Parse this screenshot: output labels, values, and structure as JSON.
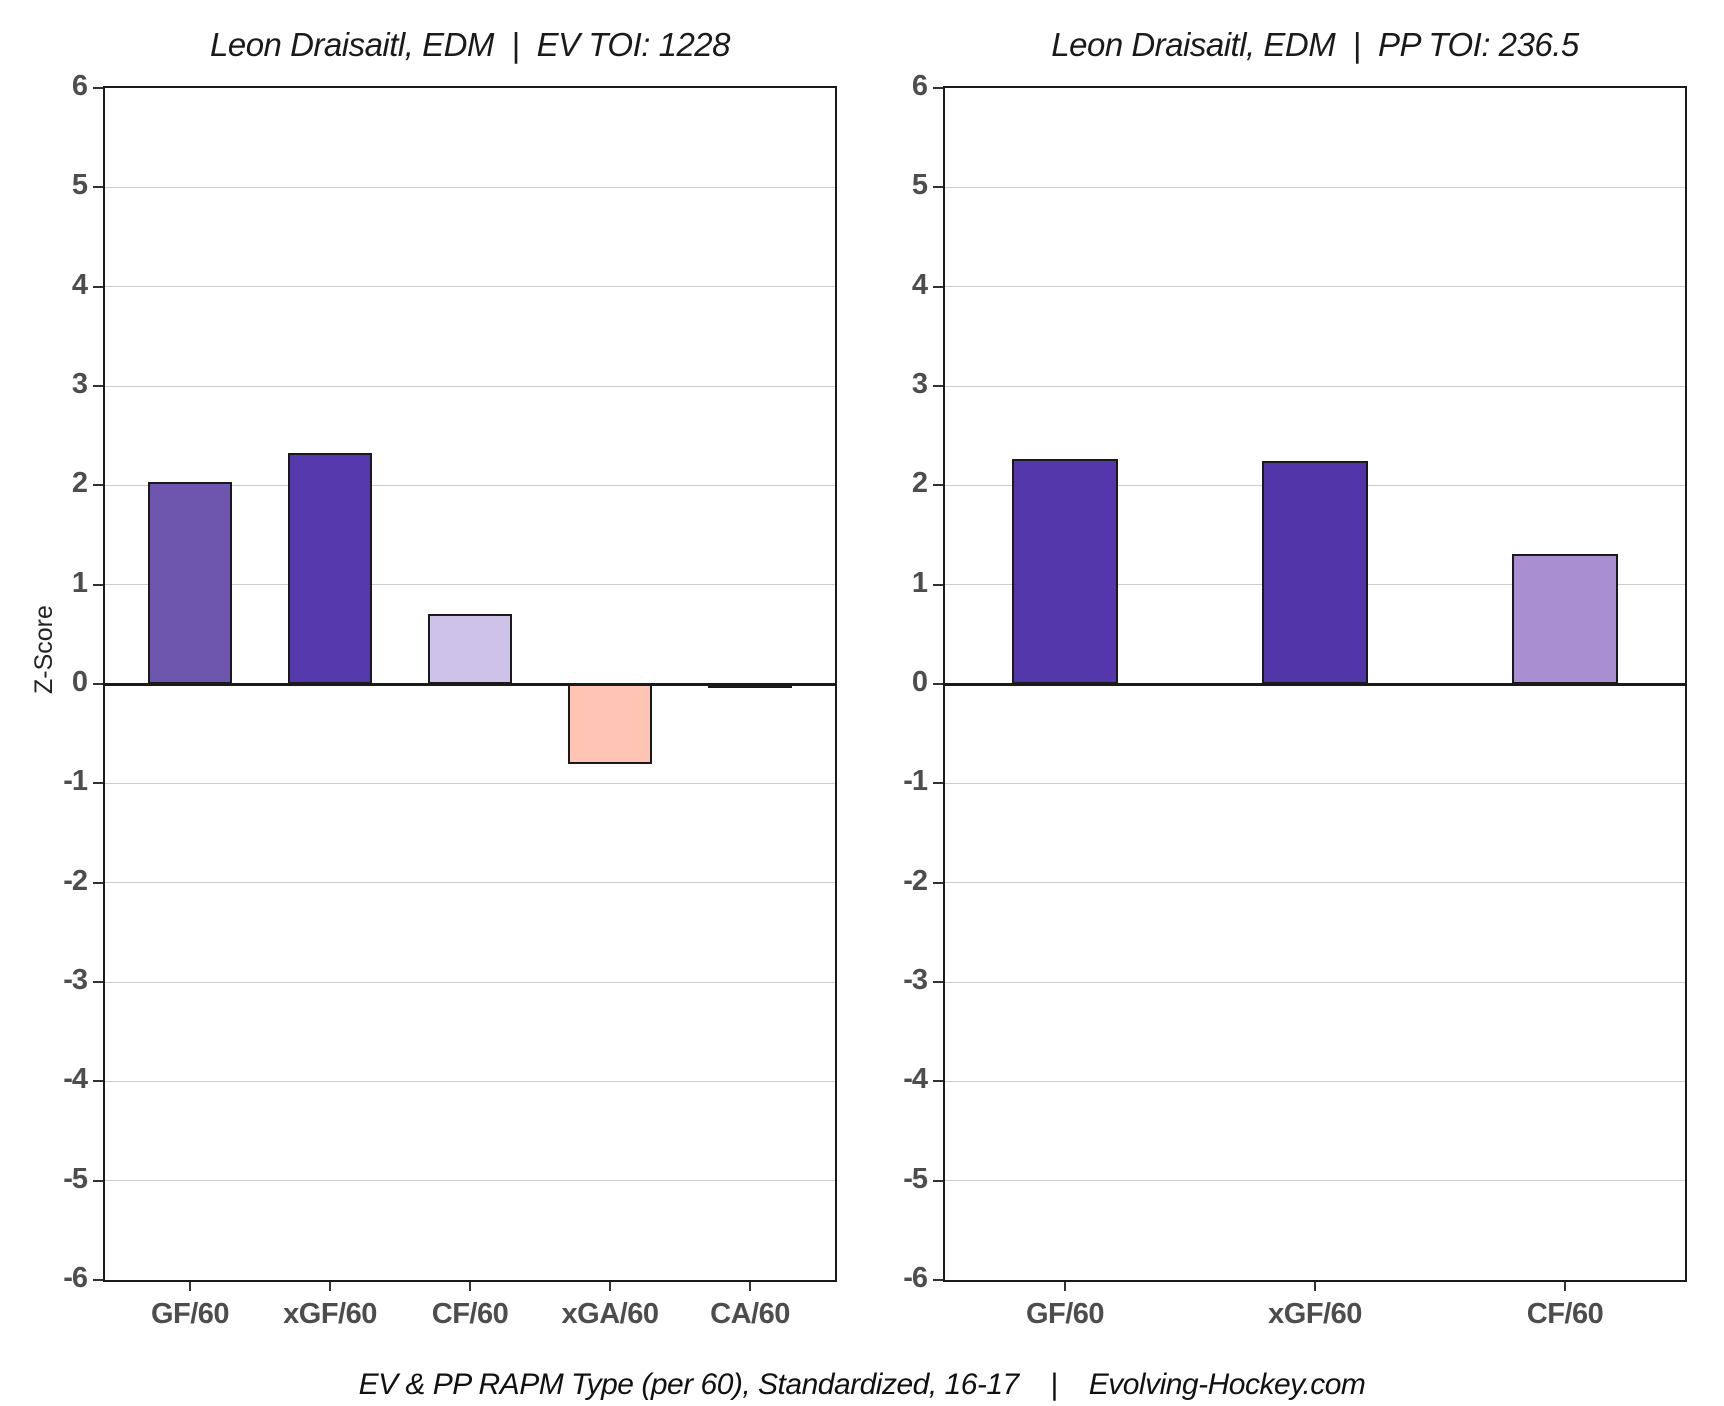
{
  "caption": "EV & PP RAPM Type (per 60), Standardized, 16-17    |    Evolving-Hockey.com",
  "colors": {
    "background": "#ffffff",
    "axis_frame": "#1a1a1a",
    "zero_line": "#1a1a1a",
    "gridline": "#cccccc",
    "tick_label": "#4d4d4d"
  },
  "chart_data": [
    {
      "type": "bar",
      "title": "Leon Draisaitl, EDM  |  EV TOI: 1228",
      "xlabel": "",
      "ylabel": "Z-Score",
      "categories": [
        "GF/60",
        "xGF/60",
        "CF/60",
        "xGA/60",
        "CA/60"
      ],
      "values": [
        2.03,
        2.33,
        0.7,
        -0.81,
        -0.02
      ],
      "bar_colors": [
        "#6e55ae",
        "#5539ac",
        "#cfc2e8",
        "#ffc4b3",
        "#ffffff"
      ],
      "ylim": [
        -6,
        6
      ],
      "ytick_step": 1,
      "grid": true,
      "legend": "none"
    },
    {
      "type": "bar",
      "title": "Leon Draisaitl, EDM  |  PP TOI: 236.5",
      "xlabel": "",
      "ylabel": "",
      "categories": [
        "GF/60",
        "xGF/60",
        "CF/60"
      ],
      "values": [
        2.27,
        2.24,
        1.31
      ],
      "bar_colors": [
        "#5438ab",
        "#5236a9",
        "#a98fd2"
      ],
      "ylim": [
        -6,
        6
      ],
      "ytick_step": 1,
      "grid": true,
      "legend": "none"
    }
  ]
}
